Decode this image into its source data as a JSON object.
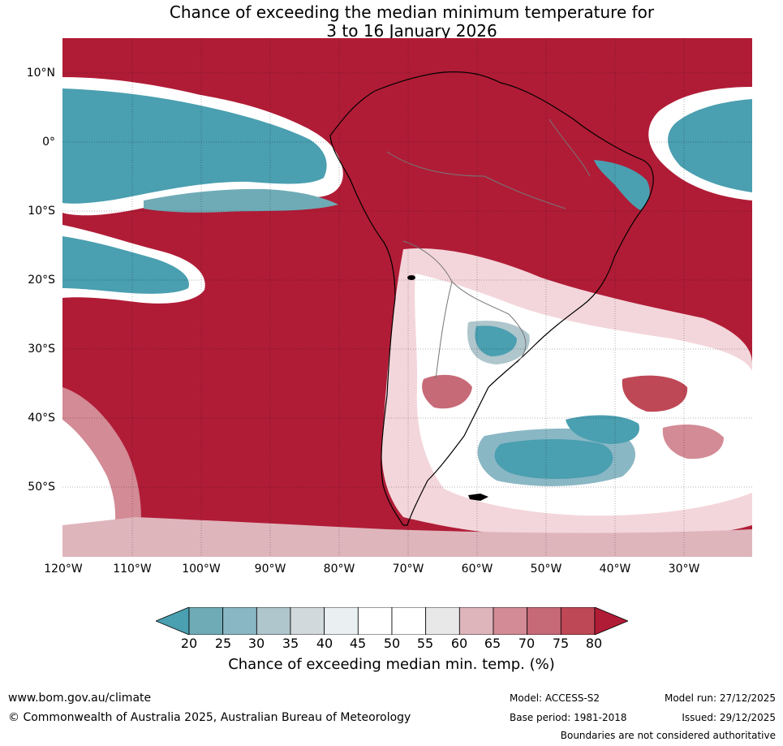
{
  "title": {
    "line1": "Chance of exceeding the median minimum temperature for",
    "line2": "3 to 16 January 2026"
  },
  "map": {
    "region": "South America",
    "lat_labels": [
      "10°N",
      "0°",
      "10°S",
      "20°S",
      "30°S",
      "40°S",
      "50°S"
    ],
    "lon_labels": [
      "120°W",
      "110°W",
      "100°W",
      "90°W",
      "80°W",
      "70°W",
      "60°W",
      "50°W",
      "40°W",
      "30°W"
    ],
    "background_color": "#b01c36"
  },
  "colorbar": {
    "ticks": [
      "20",
      "25",
      "30",
      "35",
      "40",
      "45",
      "50",
      "55",
      "60",
      "65",
      "70",
      "75",
      "80"
    ],
    "colors": [
      "#4a9fb0",
      "#6fabb6",
      "#8ab7c4",
      "#aec6cc",
      "#d2d9dc",
      "#eaf0f2",
      "#ffffff",
      "#ffffff",
      "#e8e8e8",
      "#dfb5bc",
      "#d38b96",
      "#c76a77",
      "#bf4856",
      "#b01c36"
    ],
    "label": "Chance of exceeding median min. temp. (%)"
  },
  "footer": {
    "website": "www.bom.gov.au/climate",
    "copyright": "© Commonwealth of Australia 2025, Australian Bureau of Meteorology",
    "model": "Model: ACCESS-S2",
    "base_period": "Base period: 1981-2018",
    "model_run": "Model run: 27/12/2025",
    "issued": "Issued: 29/12/2025",
    "disclaimer": "Boundaries are not considered authoritative"
  }
}
